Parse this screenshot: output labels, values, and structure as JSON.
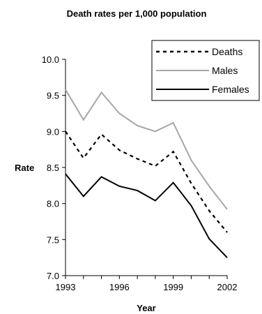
{
  "chart_data": {
    "type": "line",
    "title": "Death rates per 1,000 population",
    "xlabel": "Year",
    "ylabel": "Rate",
    "x": [
      1993,
      1994,
      1995,
      1996,
      1997,
      1998,
      1999,
      2000,
      2001,
      2002
    ],
    "xticks": [
      "1993",
      "1996",
      "1999",
      "2002"
    ],
    "xtick_values": [
      1993,
      1996,
      1999,
      2002
    ],
    "yticks": [
      "7.0",
      "7.5",
      "8.0",
      "8.5",
      "9.0",
      "9.5",
      "10.0"
    ],
    "ytick_values": [
      7.0,
      7.5,
      8.0,
      8.5,
      9.0,
      9.5,
      10.0
    ],
    "xlim": [
      1993,
      2002
    ],
    "ylim": [
      7.0,
      10.0
    ],
    "grid": false,
    "legend_position": "top-right",
    "series": [
      {
        "name": "Deaths",
        "style": "dashed",
        "color": "#000000",
        "values": [
          9.0,
          8.63,
          8.96,
          8.74,
          8.62,
          8.52,
          8.72,
          8.28,
          7.9,
          7.6
        ]
      },
      {
        "name": "Males",
        "style": "solid",
        "color": "#a6a6a6",
        "values": [
          9.58,
          9.16,
          9.54,
          9.25,
          9.08,
          9.0,
          9.12,
          8.6,
          8.24,
          7.92
        ]
      },
      {
        "name": "Females",
        "style": "solid",
        "color": "#000000",
        "values": [
          8.41,
          8.1,
          8.37,
          8.24,
          8.18,
          8.04,
          8.29,
          7.97,
          7.51,
          7.25
        ]
      }
    ]
  }
}
